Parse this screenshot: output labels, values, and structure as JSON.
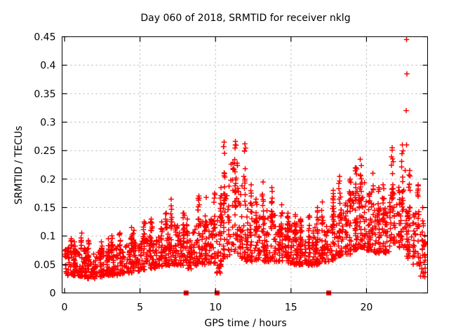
{
  "window": {
    "background": "#ffffff"
  },
  "chart_data": {
    "type": "scatter",
    "title": "Day 060 of 2018, SRMTID for receiver nklg",
    "xlabel": "GPS time / hours",
    "ylabel": "SRMTID / TECUs",
    "xlim": [
      0,
      24
    ],
    "ylim": [
      0,
      0.45
    ],
    "xticks": [
      {
        "v": 0,
        "label": "0"
      },
      {
        "v": 5,
        "label": "5"
      },
      {
        "v": 10,
        "label": "10"
      },
      {
        "v": 15,
        "label": "15"
      },
      {
        "v": 20,
        "label": "20"
      }
    ],
    "yticks": [
      {
        "v": 0,
        "label": "0"
      },
      {
        "v": 0.05,
        "label": "0.05"
      },
      {
        "v": 0.1,
        "label": "0.1"
      },
      {
        "v": 0.15,
        "label": "0.15"
      },
      {
        "v": 0.2,
        "label": "0.2"
      },
      {
        "v": 0.25,
        "label": "0.25"
      },
      {
        "v": 0.3,
        "label": "0.3"
      },
      {
        "v": 0.35,
        "label": "0.35"
      },
      {
        "v": 0.4,
        "label": "0.4"
      },
      {
        "v": 0.45,
        "label": "0.45"
      }
    ],
    "grid": true,
    "legend": "none",
    "marker": "plus",
    "colors": {
      "marker": "#ff0000",
      "grid": "#b0b0b0",
      "border": "#000000",
      "text": "#000000"
    },
    "envelope_bins": {
      "description": "dense scatter summarized per 0.5 h bin: [t_start_hours, typical_low_TECU, typical_high_TECU, bin_max_TECU, approx_point_count]",
      "bin_hours": 0.5,
      "rows": [
        [
          0.0,
          0.03,
          0.08,
          0.095,
          42
        ],
        [
          0.5,
          0.03,
          0.075,
          0.09,
          42
        ],
        [
          1.0,
          0.028,
          0.08,
          0.105,
          44
        ],
        [
          1.5,
          0.025,
          0.075,
          0.092,
          44
        ],
        [
          2.0,
          0.028,
          0.072,
          0.09,
          44
        ],
        [
          2.5,
          0.03,
          0.075,
          0.095,
          44
        ],
        [
          3.0,
          0.03,
          0.08,
          0.1,
          44
        ],
        [
          3.5,
          0.033,
          0.085,
          0.105,
          44
        ],
        [
          4.0,
          0.035,
          0.088,
          0.115,
          44
        ],
        [
          4.5,
          0.038,
          0.09,
          0.11,
          44
        ],
        [
          5.0,
          0.04,
          0.095,
          0.125,
          46
        ],
        [
          5.5,
          0.042,
          0.1,
          0.13,
          46
        ],
        [
          6.0,
          0.045,
          0.1,
          0.125,
          46
        ],
        [
          6.5,
          0.048,
          0.108,
          0.14,
          46
        ],
        [
          7.0,
          0.05,
          0.12,
          0.165,
          46
        ],
        [
          7.5,
          0.048,
          0.115,
          0.14,
          46
        ],
        [
          8.0,
          0.042,
          0.108,
          0.13,
          44
        ],
        [
          8.5,
          0.048,
          0.118,
          0.17,
          46
        ],
        [
          9.0,
          0.05,
          0.125,
          0.168,
          46
        ],
        [
          9.5,
          0.052,
          0.13,
          0.175,
          46
        ],
        [
          10.0,
          0.035,
          0.14,
          0.185,
          44
        ],
        [
          10.5,
          0.06,
          0.2,
          0.265,
          48
        ],
        [
          11.0,
          0.07,
          0.23,
          0.266,
          50
        ],
        [
          11.5,
          0.06,
          0.21,
          0.262,
          48
        ],
        [
          12.0,
          0.055,
          0.15,
          0.19,
          46
        ],
        [
          12.5,
          0.055,
          0.14,
          0.165,
          46
        ],
        [
          13.0,
          0.055,
          0.15,
          0.195,
          46
        ],
        [
          13.5,
          0.055,
          0.14,
          0.185,
          46
        ],
        [
          14.0,
          0.055,
          0.125,
          0.155,
          46
        ],
        [
          14.5,
          0.052,
          0.12,
          0.14,
          46
        ],
        [
          15.0,
          0.05,
          0.118,
          0.138,
          46
        ],
        [
          15.5,
          0.048,
          0.112,
          0.13,
          46
        ],
        [
          16.0,
          0.048,
          0.11,
          0.135,
          46
        ],
        [
          16.5,
          0.05,
          0.115,
          0.15,
          46
        ],
        [
          17.0,
          0.055,
          0.125,
          0.16,
          46
        ],
        [
          17.5,
          0.058,
          0.135,
          0.18,
          46
        ],
        [
          18.0,
          0.065,
          0.15,
          0.205,
          48
        ],
        [
          18.5,
          0.068,
          0.16,
          0.2,
          48
        ],
        [
          19.0,
          0.075,
          0.18,
          0.22,
          48
        ],
        [
          19.5,
          0.08,
          0.195,
          0.235,
          50
        ],
        [
          20.0,
          0.075,
          0.175,
          0.21,
          48
        ],
        [
          20.5,
          0.07,
          0.15,
          0.185,
          46
        ],
        [
          21.0,
          0.07,
          0.155,
          0.19,
          46
        ],
        [
          21.5,
          0.08,
          0.185,
          0.255,
          48
        ],
        [
          22.0,
          0.08,
          0.19,
          0.26,
          48
        ],
        [
          22.5,
          0.06,
          0.15,
          0.215,
          44
        ],
        [
          23.0,
          0.05,
          0.14,
          0.19,
          44
        ],
        [
          23.5,
          0.028,
          0.115,
          0.15,
          40
        ]
      ]
    },
    "outliers": [
      [
        22.65,
        0.445
      ],
      [
        22.68,
        0.385
      ],
      [
        22.62,
        0.32
      ],
      [
        22.66,
        0.26
      ],
      [
        22.55,
        0.215
      ]
    ],
    "baseline_markers": {
      "shape": "filled-square",
      "y": 0,
      "hours": [
        8.05,
        10.1,
        17.5
      ],
      "color": "#ff0000"
    }
  }
}
